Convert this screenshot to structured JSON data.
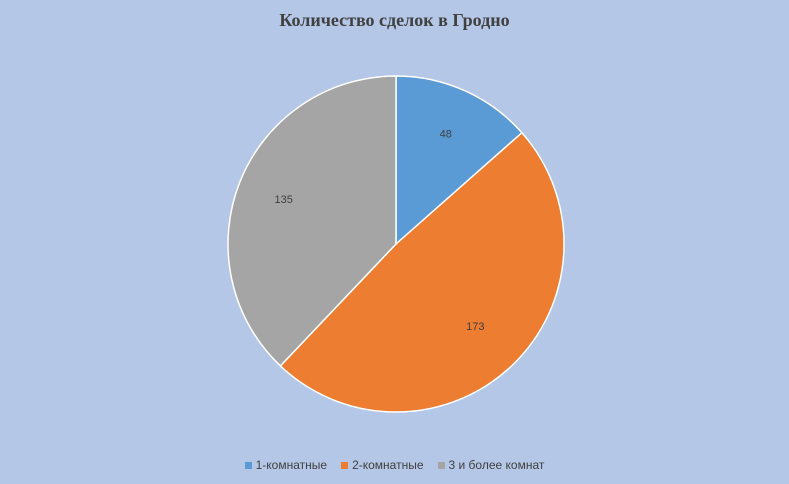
{
  "chart_data": {
    "type": "pie",
    "title": "Количество сделок в Гродно",
    "categories": [
      "1-комнатные",
      "2-комнатные",
      "3 и более комнат"
    ],
    "values": [
      48,
      173,
      135
    ],
    "colors": [
      "#5b9bd5",
      "#ed7d31",
      "#a5a5a5"
    ],
    "data_labels": [
      "48",
      "173",
      "135"
    ],
    "legend_position": "bottom",
    "start_angle": "12 o'clock, clockwise"
  }
}
